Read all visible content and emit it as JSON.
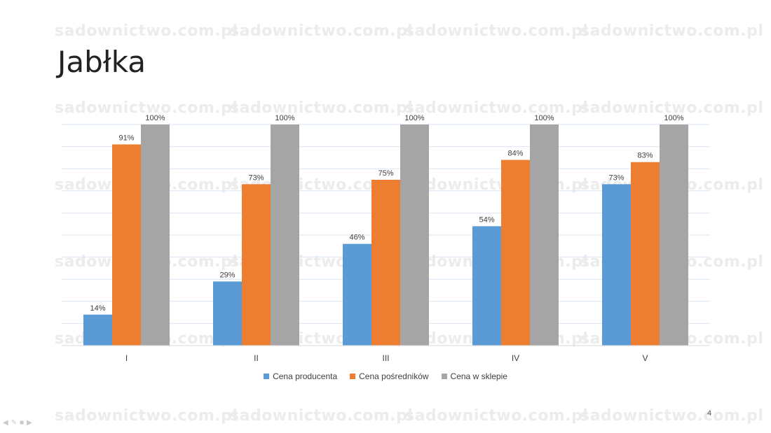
{
  "slide": {
    "title": "Jabłka",
    "page_number": "4",
    "watermark_text": "sadownictwo.com.pl"
  },
  "colors": {
    "series": [
      "#5b9bd5",
      "#ed7d31",
      "#a5a5a5"
    ],
    "gridline": "#d9e5f3",
    "axis": "#d9d9d9",
    "label": "#404040"
  },
  "chart_data": {
    "type": "bar",
    "title": "",
    "xlabel": "",
    "ylabel": "",
    "categories": [
      "I",
      "II",
      "III",
      "IV",
      "V"
    ],
    "series": [
      {
        "name": "Cena producenta",
        "values": [
          14,
          29,
          46,
          54,
          73
        ],
        "labels": [
          "14%",
          "29%",
          "46%",
          "54%",
          "73%"
        ]
      },
      {
        "name": "Cena pośredników",
        "values": [
          91,
          73,
          75,
          84,
          83
        ],
        "labels": [
          "91%",
          "73%",
          "75%",
          "84%",
          "83%"
        ]
      },
      {
        "name": "Cena w sklepie",
        "values": [
          100,
          100,
          100,
          100,
          100
        ],
        "labels": [
          "100%",
          "100%",
          "100%",
          "100%",
          "100%"
        ]
      }
    ],
    "ylim": [
      0,
      100
    ],
    "grid": true,
    "legend_position": "bottom"
  }
}
